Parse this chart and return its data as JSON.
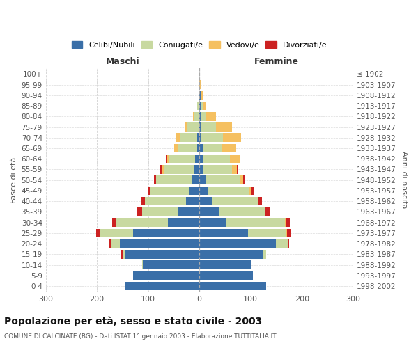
{
  "age_groups": [
    "0-4",
    "5-9",
    "10-14",
    "15-19",
    "20-24",
    "25-29",
    "30-34",
    "35-39",
    "40-44",
    "45-49",
    "50-54",
    "55-59",
    "60-64",
    "65-69",
    "70-74",
    "75-79",
    "80-84",
    "85-89",
    "90-94",
    "95-99",
    "100+"
  ],
  "birth_years": [
    "1998-2002",
    "1993-1997",
    "1988-1992",
    "1983-1987",
    "1978-1982",
    "1973-1977",
    "1968-1972",
    "1963-1967",
    "1958-1962",
    "1953-1957",
    "1948-1952",
    "1943-1947",
    "1938-1942",
    "1933-1937",
    "1928-1932",
    "1923-1927",
    "1918-1922",
    "1913-1917",
    "1908-1912",
    "1903-1907",
    "≤ 1902"
  ],
  "maschi": {
    "celibe": [
      145,
      130,
      110,
      145,
      155,
      130,
      62,
      42,
      26,
      20,
      14,
      10,
      8,
      5,
      4,
      2,
      0,
      0,
      0,
      0,
      0
    ],
    "coniugato": [
      0,
      0,
      2,
      5,
      18,
      65,
      100,
      70,
      80,
      75,
      70,
      60,
      52,
      38,
      35,
      22,
      10,
      4,
      2,
      0,
      0
    ],
    "vedovo": [
      0,
      0,
      0,
      0,
      0,
      0,
      0,
      0,
      1,
      1,
      1,
      2,
      4,
      6,
      8,
      5,
      3,
      1,
      0,
      0,
      0
    ],
    "divorziato": [
      0,
      0,
      0,
      2,
      4,
      6,
      8,
      10,
      7,
      5,
      4,
      4,
      2,
      0,
      0,
      0,
      0,
      0,
      0,
      0,
      0
    ]
  },
  "femmine": {
    "nubile": [
      130,
      105,
      100,
      125,
      150,
      95,
      52,
      38,
      24,
      18,
      14,
      8,
      8,
      6,
      4,
      4,
      2,
      2,
      2,
      0,
      0
    ],
    "coniugata": [
      0,
      0,
      2,
      5,
      22,
      75,
      115,
      90,
      90,
      80,
      65,
      55,
      52,
      38,
      42,
      28,
      12,
      4,
      2,
      0,
      0
    ],
    "vedova": [
      0,
      0,
      0,
      0,
      0,
      1,
      1,
      1,
      2,
      4,
      6,
      10,
      18,
      28,
      35,
      32,
      18,
      6,
      4,
      2,
      0
    ],
    "divorziata": [
      0,
      0,
      0,
      1,
      3,
      7,
      8,
      8,
      6,
      5,
      5,
      3,
      2,
      0,
      0,
      0,
      0,
      0,
      0,
      0,
      0
    ]
  },
  "colors": {
    "celibe": "#3a6fa8",
    "coniugato": "#c8d9a0",
    "vedovo": "#f5c060",
    "divorziato": "#cc2222"
  },
  "xlim": 300,
  "title": "Popolazione per età, sesso e stato civile - 2003",
  "subtitle": "COMUNE DI CALCINATE (BG) - Dati ISTAT 1° gennaio 2003 - Elaborazione TUTTITALIA.IT",
  "ylabel_left": "Fasce di età",
  "ylabel_right": "Anni di nascita",
  "xlabel_maschi": "Maschi",
  "xlabel_femmine": "Femmine",
  "legend_labels": [
    "Celibi/Nubili",
    "Coniugati/e",
    "Vedovi/e",
    "Divorziati/e"
  ],
  "background_color": "#ffffff",
  "grid_color": "#cccccc"
}
